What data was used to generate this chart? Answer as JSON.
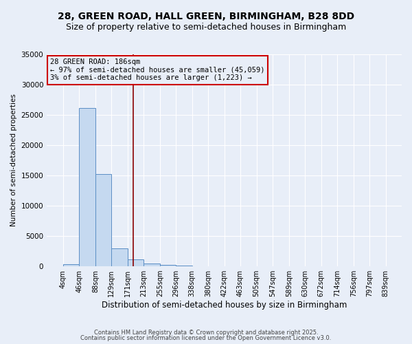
{
  "title1": "28, GREEN ROAD, HALL GREEN, BIRMINGHAM, B28 8DD",
  "title2": "Size of property relative to semi-detached houses in Birmingham",
  "xlabel": "Distribution of semi-detached houses by size in Birmingham",
  "ylabel": "Number of semi-detached properties",
  "footer1": "Contains HM Land Registry data © Crown copyright and database right 2025.",
  "footer2": "Contains public sector information licensed under the Open Government Licence v3.0.",
  "annotation_title": "28 GREEN ROAD: 186sqm",
  "annotation_line1": "← 97% of semi-detached houses are smaller (45,059)",
  "annotation_line2": "3% of semi-detached houses are larger (1,223) →",
  "bin_edges": [
    4,
    46,
    88,
    129,
    171,
    213,
    255,
    296,
    338,
    380,
    422,
    463,
    505,
    547,
    589,
    630,
    672,
    714,
    756,
    797,
    839
  ],
  "bin_counts": [
    400,
    26100,
    15200,
    3000,
    1100,
    450,
    200,
    100,
    0,
    0,
    0,
    0,
    0,
    0,
    0,
    0,
    0,
    0,
    0,
    0
  ],
  "property_size": 186,
  "bar_color": "#c5d9f0",
  "bar_edge_color": "#5b8ec5",
  "vline_color": "#8b0000",
  "annotation_box_color": "#cc0000",
  "background_color": "#e8eef8",
  "grid_color": "#ffffff",
  "ylim": [
    0,
    35000
  ],
  "yticks": [
    0,
    5000,
    10000,
    15000,
    20000,
    25000,
    30000,
    35000
  ],
  "title_fontsize": 10,
  "subtitle_fontsize": 9
}
